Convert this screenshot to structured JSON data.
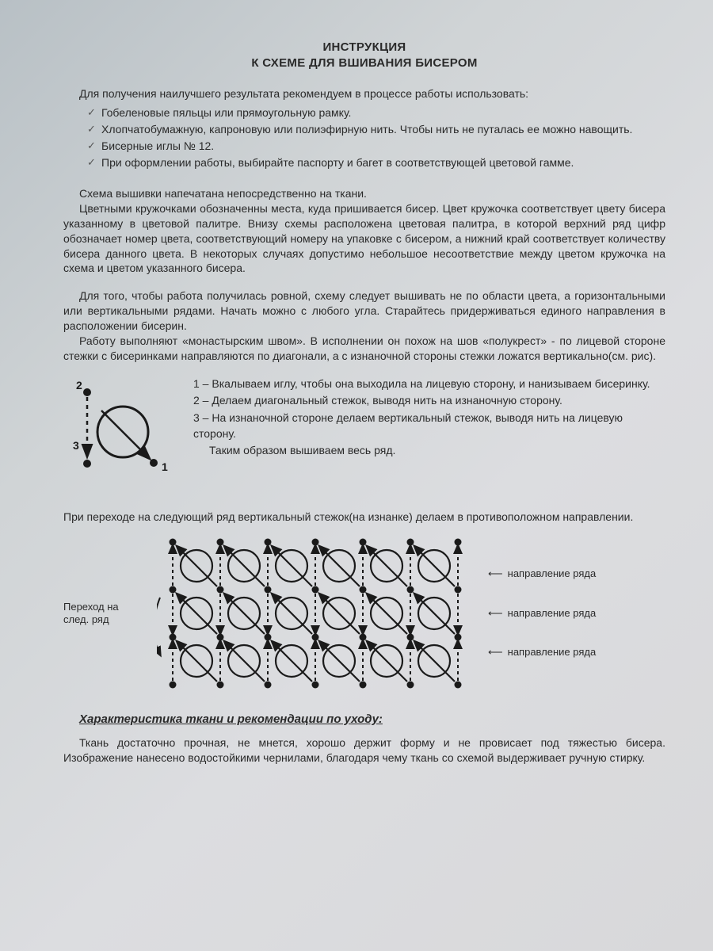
{
  "title_line1": "ИНСТРУКЦИЯ",
  "title_line2": "К СХЕМЕ ДЛЯ ВШИВАНИЯ БИСЕРОМ",
  "intro": "Для получения наилучшего результата рекомендуем в процессе работы использовать:",
  "bullets": [
    "Гобеленовые пяльцы или прямоугольную рамку.",
    "Хлопчатобумажную, капроновую или полиэфирную нить. Чтобы нить не путалась ее можно навощить.",
    "Бисерные иглы № 12.",
    "При оформлении работы, выбирайте паспорту и багет в соответствующей цветовой гамме."
  ],
  "para1": "Схема вышивки напечатана непосредственно на ткани.\nЦветными кружочками обозначенны места, куда пришивается бисер. Цвет кружочка соответствует цвету бисера указанному в цветовой палитре. Внизу схемы расположена цветовая палитра, в которой верхний ряд цифр обозначает номер цвета, соответствующий номеру на упаковке с бисером, а нижний край соответствует количеству бисера данного цвета. В некоторых случаях допустимо небольшое несоответствие между цветом кружочка на схема и цветом указанного бисера.",
  "para2": "Для того, чтобы работа получилась ровной, схему следует вышивать не по области цвета, а горизонтальными или вертикальными рядами. Начать можно с любого угла. Старайтесь придерживаться единого направления в расположении бисерин.\nРаботу выполняют «монастырским швом». В исполнении он похож на шов «полукрест» - по лицевой стороне стежки с бисеринками направляются по диагонали, а с изнаночной стороны стежки ложатся вертикально(см. рис).",
  "stitch": {
    "labels": {
      "n1": "1",
      "n2": "2",
      "n3": "3"
    },
    "steps": [
      "1 – Вкалываем иглу, чтобы она выходила на лицевую сторону, и нанизываем бисеринку.",
      "2 – Делаем диагональный стежок, выводя нить на изнаночную сторону.",
      "3 – На изнаночной стороне делаем вертикальный стежок, выводя нить на лицевую сторону.",
      "Таким образом вышиваем весь ряд."
    ]
  },
  "transition": "При переходе на следующий ряд вертикальный стежок(на изнанке) делаем в противоположном направлении.",
  "grid": {
    "left_label": "Переход на след. ряд",
    "right_label": "направление ряда",
    "cols": 6,
    "rows": 3,
    "cell": 60,
    "circle_r": 20,
    "dot_r": 4.5,
    "stroke": "#1a1a1a",
    "stroke_w": 2.2
  },
  "fabric_title": "Характеристика ткани и рекомендации по уходу:",
  "fabric_body": "Ткань достаточно прочная, не мнется, хорошо держит форму и не провисает под тяжестью бисера. Изображение нанесено водостойкими чернилами, благодаря чему ткань со схемой выдерживает ручную стирку.",
  "colors": {
    "text": "#2a2a2a",
    "bg_top": "#b8c0c5",
    "bg_bottom": "#d8d8da"
  }
}
